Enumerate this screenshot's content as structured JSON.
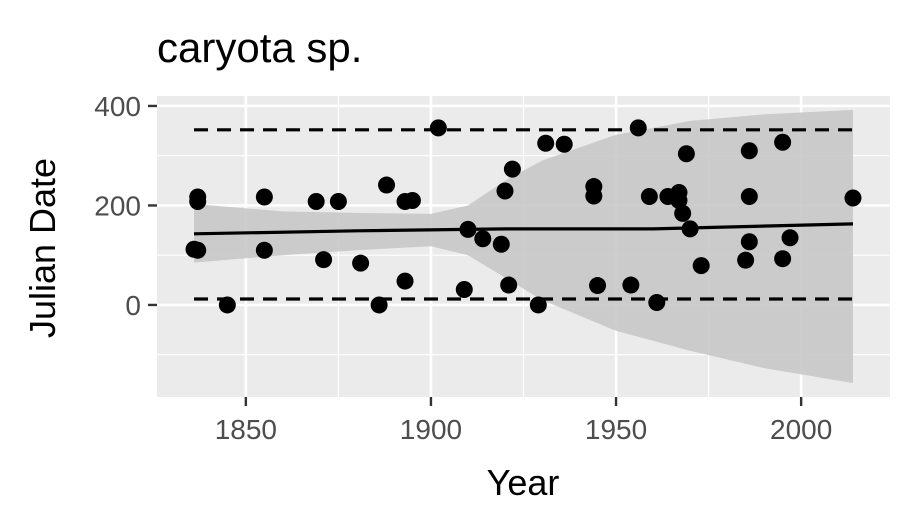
{
  "chart_data": {
    "type": "scatter",
    "title": "caryota sp.",
    "xlabel": "Year",
    "ylabel": "Julian Date",
    "xlim": [
      1826,
      2024
    ],
    "ylim": [
      -185,
      420
    ],
    "x_ticks": [
      1850,
      1900,
      1950,
      2000
    ],
    "y_ticks": [
      0,
      200,
      400
    ],
    "grid": true,
    "legend": "none",
    "colors": {
      "panel": "#ebebeb",
      "grid": "#ffffff",
      "points": "#000000",
      "ribbon": "#c8c8c8",
      "fit_line": "#000000"
    },
    "points": [
      {
        "x": 1836,
        "y": 112
      },
      {
        "x": 1837,
        "y": 110
      },
      {
        "x": 1837,
        "y": 208
      },
      {
        "x": 1837,
        "y": 217
      },
      {
        "x": 1845,
        "y": 0
      },
      {
        "x": 1855,
        "y": 217
      },
      {
        "x": 1855,
        "y": 110
      },
      {
        "x": 1869,
        "y": 208
      },
      {
        "x": 1871,
        "y": 91
      },
      {
        "x": 1875,
        "y": 208
      },
      {
        "x": 1881,
        "y": 84
      },
      {
        "x": 1886,
        "y": 0
      },
      {
        "x": 1888,
        "y": 241
      },
      {
        "x": 1893,
        "y": 48
      },
      {
        "x": 1893,
        "y": 208
      },
      {
        "x": 1895,
        "y": 210
      },
      {
        "x": 1902,
        "y": 356
      },
      {
        "x": 1909,
        "y": 31
      },
      {
        "x": 1910,
        "y": 152
      },
      {
        "x": 1914,
        "y": 133
      },
      {
        "x": 1919,
        "y": 122
      },
      {
        "x": 1920,
        "y": 229
      },
      {
        "x": 1921,
        "y": 40
      },
      {
        "x": 1922,
        "y": 273
      },
      {
        "x": 1929,
        "y": 0
      },
      {
        "x": 1931,
        "y": 325
      },
      {
        "x": 1936,
        "y": 323
      },
      {
        "x": 1944,
        "y": 238
      },
      {
        "x": 1944,
        "y": 219
      },
      {
        "x": 1945,
        "y": 39
      },
      {
        "x": 1954,
        "y": 40
      },
      {
        "x": 1956,
        "y": 356
      },
      {
        "x": 1959,
        "y": 218
      },
      {
        "x": 1961,
        "y": 5
      },
      {
        "x": 1964,
        "y": 218
      },
      {
        "x": 1967,
        "y": 210
      },
      {
        "x": 1967,
        "y": 226
      },
      {
        "x": 1968,
        "y": 184
      },
      {
        "x": 1969,
        "y": 304
      },
      {
        "x": 1970,
        "y": 153
      },
      {
        "x": 1973,
        "y": 79
      },
      {
        "x": 1985,
        "y": 90
      },
      {
        "x": 1986,
        "y": 310
      },
      {
        "x": 1986,
        "y": 218
      },
      {
        "x": 1986,
        "y": 127
      },
      {
        "x": 1995,
        "y": 327
      },
      {
        "x": 1995,
        "y": 93
      },
      {
        "x": 1997,
        "y": 135
      },
      {
        "x": 2014,
        "y": 215
      }
    ],
    "fit_line": [
      {
        "x": 1836,
        "y": 143
      },
      {
        "x": 1880,
        "y": 149
      },
      {
        "x": 1920,
        "y": 153
      },
      {
        "x": 1960,
        "y": 153
      },
      {
        "x": 2014,
        "y": 163
      }
    ],
    "confidence_band": [
      {
        "x": 1836,
        "lower": 85,
        "upper": 203
      },
      {
        "x": 1860,
        "lower": 100,
        "upper": 188
      },
      {
        "x": 1880,
        "lower": 110,
        "upper": 185
      },
      {
        "x": 1900,
        "lower": 118,
        "upper": 183
      },
      {
        "x": 1910,
        "lower": 100,
        "upper": 200
      },
      {
        "x": 1920,
        "lower": 55,
        "upper": 250
      },
      {
        "x": 1930,
        "lower": 10,
        "upper": 290
      },
      {
        "x": 1950,
        "lower": -52,
        "upper": 342
      },
      {
        "x": 1970,
        "lower": -92,
        "upper": 370
      },
      {
        "x": 1990,
        "lower": -127,
        "upper": 383
      },
      {
        "x": 2014,
        "lower": -157,
        "upper": 392
      }
    ],
    "upper_dashed_line": [
      {
        "x": 1836,
        "y": 352
      },
      {
        "x": 2014,
        "y": 352
      }
    ],
    "lower_dashed_line": [
      {
        "x": 1836,
        "y": 12
      },
      {
        "x": 2014,
        "y": 12
      }
    ]
  }
}
